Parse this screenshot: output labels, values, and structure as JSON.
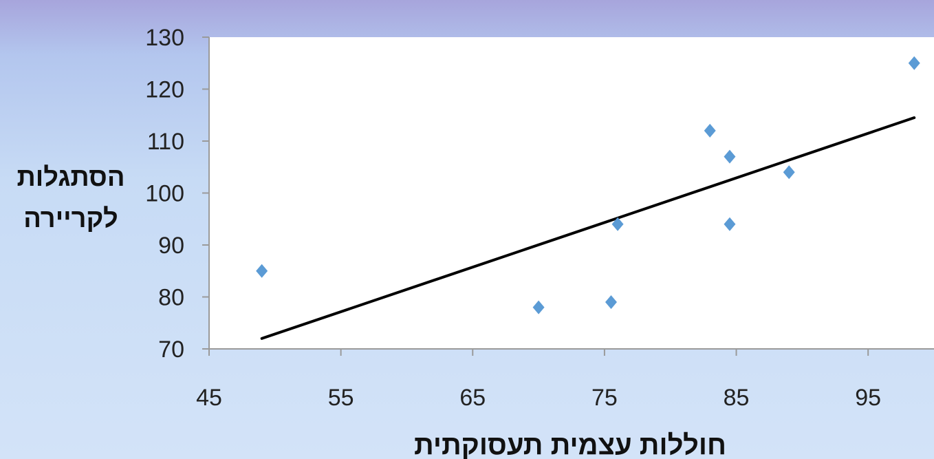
{
  "chart_data": {
    "type": "scatter",
    "title": "",
    "xlabel": "חוללות עצמית תעסוקתית",
    "ylabel_lines": [
      "הסתגלות",
      "לקריירה"
    ],
    "xlim": [
      45,
      100
    ],
    "ylim": [
      70,
      130
    ],
    "x_ticks": [
      45,
      55,
      65,
      75,
      85,
      95
    ],
    "y_ticks": [
      70,
      80,
      90,
      100,
      110,
      120,
      130
    ],
    "grid": false,
    "legend": "none",
    "points": [
      {
        "x": 49,
        "y": 85
      },
      {
        "x": 70,
        "y": 78
      },
      {
        "x": 75.5,
        "y": 79
      },
      {
        "x": 76,
        "y": 94
      },
      {
        "x": 83,
        "y": 112
      },
      {
        "x": 84.5,
        "y": 107
      },
      {
        "x": 84.5,
        "y": 94
      },
      {
        "x": 89,
        "y": 104
      },
      {
        "x": 98.5,
        "y": 125
      }
    ],
    "trendline": {
      "x": [
        49,
        98.5
      ],
      "y": [
        72,
        114.5
      ]
    },
    "colors": {
      "marker": "#5b9bd5",
      "trendline": "#000000",
      "plot_bg": "#ffffff",
      "axis": "#9a9a9a"
    }
  }
}
